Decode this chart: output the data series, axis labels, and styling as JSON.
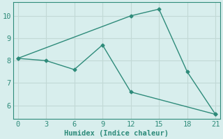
{
  "xlabel": "Humidex (Indice chaleur)",
  "line1_x": [
    0,
    12,
    15,
    18,
    21
  ],
  "line1_y": [
    8.1,
    10.0,
    10.3,
    7.5,
    5.6
  ],
  "line2_x": [
    0,
    3,
    6,
    9,
    12,
    21
  ],
  "line2_y": [
    8.1,
    8.0,
    7.6,
    8.7,
    6.6,
    5.6
  ],
  "line_color": "#2e8b7a",
  "bg_color": "#d8eeed",
  "grid_color": "#c2d9d6",
  "xlim": [
    -0.5,
    21.5
  ],
  "ylim": [
    5.4,
    10.6
  ],
  "xticks": [
    0,
    3,
    6,
    9,
    12,
    15,
    18,
    21
  ],
  "yticks": [
    6,
    7,
    8,
    9,
    10
  ],
  "font_size": 7.5,
  "marker": "D",
  "marker_size": 2.5,
  "linewidth": 1.0
}
